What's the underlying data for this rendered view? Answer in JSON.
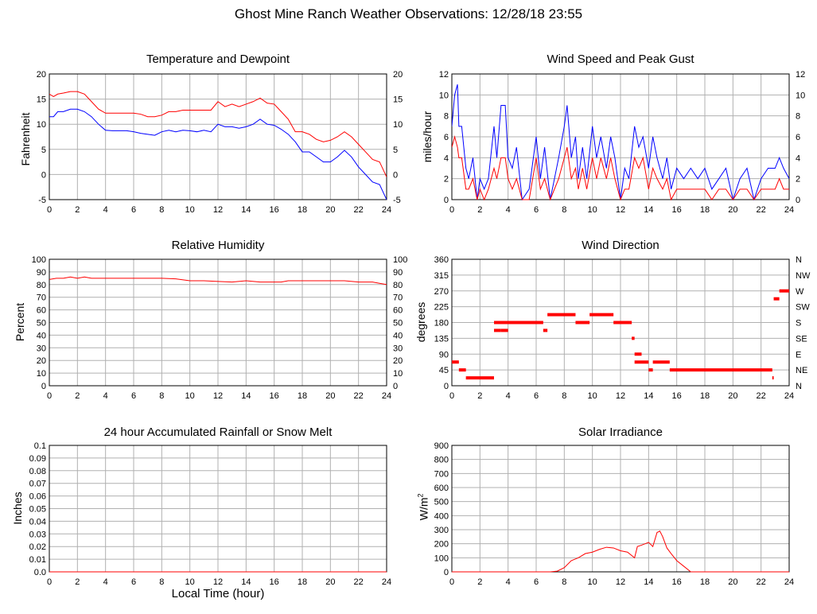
{
  "page": {
    "title": "Ghost Mine Ranch Weather Observations: 12/28/18 23:55"
  },
  "colors": {
    "red": "#ff0000",
    "blue": "#0000ff",
    "grid": "#b0b0b0"
  },
  "chart_data": [
    {
      "id": "temp",
      "type": "line",
      "title": "Temperature and Dewpoint",
      "ylabel": "Fahrenheit",
      "x_ticks": [
        0,
        2,
        4,
        6,
        8,
        10,
        12,
        14,
        16,
        18,
        20,
        22,
        24
      ],
      "ylim": [
        -5,
        20
      ],
      "y_ticks": [
        -5,
        0,
        5,
        10,
        15,
        20
      ],
      "right_axis_ticks": [
        "-5",
        "0",
        "5",
        "10",
        "15",
        "20"
      ],
      "series": [
        {
          "color": "red",
          "x": [
            0,
            0.3,
            0.6,
            1,
            1.5,
            2,
            2.5,
            3,
            3.5,
            4,
            4.5,
            5,
            5.5,
            6,
            6.5,
            7,
            7.5,
            8,
            8.5,
            9,
            9.5,
            10,
            10.5,
            11,
            11.5,
            12,
            12.5,
            13,
            13.5,
            14,
            14.5,
            15,
            15.5,
            16,
            16.5,
            17,
            17.5,
            18,
            18.5,
            19,
            19.5,
            20,
            20.5,
            21,
            21.5,
            22,
            22.5,
            23,
            23.5,
            24
          ],
          "y": [
            16,
            15.5,
            16,
            16.2,
            16.5,
            16.5,
            16,
            14.5,
            13,
            12.2,
            12.2,
            12.2,
            12.2,
            12.2,
            12,
            11.5,
            11.5,
            11.8,
            12.5,
            12.5,
            12.8,
            12.8,
            12.8,
            12.8,
            12.8,
            14.5,
            13.5,
            14,
            13.5,
            14,
            14.5,
            15.2,
            14.2,
            14,
            12.5,
            11,
            8.5,
            8.5,
            8,
            7,
            6.5,
            6.8,
            7.5,
            8.5,
            7.5,
            6,
            4.5,
            3,
            2.5,
            -0.5
          ]
        },
        {
          "color": "blue",
          "x": [
            0,
            0.3,
            0.6,
            1,
            1.5,
            2,
            2.5,
            3,
            3.5,
            4,
            4.5,
            5,
            5.5,
            6,
            6.5,
            7,
            7.5,
            8,
            8.5,
            9,
            9.5,
            10,
            10.5,
            11,
            11.5,
            12,
            12.5,
            13,
            13.5,
            14,
            14.5,
            15,
            15.5,
            16,
            16.5,
            17,
            17.5,
            18,
            18.5,
            19,
            19.5,
            20,
            20.5,
            21,
            21.5,
            22,
            22.5,
            23,
            23.5,
            24
          ],
          "y": [
            11.5,
            11.5,
            12.5,
            12.5,
            13,
            13,
            12.5,
            11.5,
            10,
            8.8,
            8.7,
            8.7,
            8.7,
            8.5,
            8.2,
            8,
            7.8,
            8.5,
            8.8,
            8.5,
            8.8,
            8.7,
            8.5,
            8.8,
            8.5,
            10,
            9.5,
            9.5,
            9.2,
            9.5,
            10,
            11,
            10,
            9.8,
            9,
            8,
            6.5,
            4.5,
            4.5,
            3.5,
            2.5,
            2.5,
            3.5,
            4.8,
            3.5,
            1.5,
            0,
            -1.5,
            -2,
            -5
          ]
        }
      ]
    },
    {
      "id": "wind",
      "type": "line",
      "title": "Wind Speed and Peak Gust",
      "ylabel": "miles/hour",
      "x_ticks": [
        0,
        2,
        4,
        6,
        8,
        10,
        12,
        14,
        16,
        18,
        20,
        22,
        24
      ],
      "ylim": [
        0,
        12
      ],
      "y_ticks": [
        0,
        2,
        4,
        6,
        8,
        10,
        12
      ],
      "right_axis_ticks": [
        "0",
        "2",
        "4",
        "6",
        "8",
        "10",
        "12"
      ],
      "series": [
        {
          "color": "blue",
          "x": [
            0,
            0.2,
            0.4,
            0.5,
            0.7,
            1,
            1.2,
            1.5,
            1.8,
            2,
            2.3,
            2.6,
            3,
            3.2,
            3.5,
            3.8,
            4,
            4.3,
            4.6,
            5,
            5.5,
            6,
            6.3,
            6.6,
            7,
            7.3,
            7.6,
            8,
            8.2,
            8.5,
            8.8,
            9,
            9.3,
            9.6,
            10,
            10.3,
            10.6,
            11,
            11.3,
            11.6,
            12,
            12.3,
            12.6,
            13,
            13.3,
            13.6,
            14,
            14.3,
            14.6,
            15,
            15.3,
            15.6,
            16,
            16.5,
            17,
            17.5,
            18,
            18.5,
            19,
            19.5,
            20,
            20.5,
            21,
            21.5,
            22,
            22.5,
            23,
            23.3,
            23.6,
            24
          ],
          "y": [
            7,
            10,
            11,
            7,
            7,
            3,
            2,
            4,
            0,
            2,
            1,
            2,
            7,
            4,
            9,
            9,
            4,
            3,
            5,
            0,
            1,
            6,
            2,
            5,
            0,
            2,
            4,
            7,
            9,
            4,
            6,
            2,
            5,
            2,
            7,
            4,
            6,
            3,
            6,
            4,
            0,
            3,
            2,
            7,
            5,
            6,
            3,
            6,
            4,
            2,
            4,
            1,
            3,
            2,
            3,
            2,
            3,
            1,
            2,
            3,
            0,
            2,
            3,
            0,
            2,
            3,
            3,
            4,
            3,
            2
          ]
        },
        {
          "color": "red",
          "x": [
            0,
            0.2,
            0.4,
            0.5,
            0.7,
            1,
            1.2,
            1.5,
            1.8,
            2,
            2.3,
            2.6,
            3,
            3.2,
            3.5,
            3.8,
            4,
            4.3,
            4.6,
            5,
            5.5,
            6,
            6.3,
            6.6,
            7,
            7.3,
            7.6,
            8,
            8.2,
            8.5,
            8.8,
            9,
            9.3,
            9.6,
            10,
            10.3,
            10.6,
            11,
            11.3,
            11.6,
            12,
            12.3,
            12.6,
            13,
            13.3,
            13.6,
            14,
            14.3,
            14.6,
            15,
            15.3,
            15.6,
            16,
            16.5,
            17,
            17.5,
            18,
            18.5,
            19,
            19.5,
            20,
            20.5,
            21,
            21.5,
            22,
            22.5,
            23,
            23.3,
            23.6,
            24
          ],
          "y": [
            5,
            6,
            5,
            4,
            4,
            1,
            1,
            2,
            0,
            1,
            0,
            1,
            3,
            2,
            4,
            4,
            2,
            1,
            2,
            0,
            0,
            4,
            1,
            2,
            0,
            1,
            2,
            4,
            5,
            2,
            3,
            1,
            3,
            1,
            4,
            2,
            4,
            2,
            4,
            2,
            0,
            1,
            1,
            4,
            3,
            4,
            1,
            3,
            2,
            1,
            2,
            0,
            1,
            1,
            1,
            1,
            1,
            0,
            1,
            1,
            0,
            1,
            1,
            0,
            1,
            1,
            1,
            2,
            1,
            1
          ]
        }
      ]
    },
    {
      "id": "rh",
      "type": "line",
      "title": "Relative Humidity",
      "ylabel": "Percent",
      "x_ticks": [
        0,
        2,
        4,
        6,
        8,
        10,
        12,
        14,
        16,
        18,
        20,
        22,
        24
      ],
      "ylim": [
        0,
        100
      ],
      "y_ticks": [
        0,
        10,
        20,
        30,
        40,
        50,
        60,
        70,
        80,
        90,
        100
      ],
      "right_axis_ticks": [
        "0",
        "10",
        "20",
        "30",
        "40",
        "50",
        "60",
        "70",
        "80",
        "90",
        "100"
      ],
      "series": [
        {
          "color": "red",
          "x": [
            0,
            0.5,
            1,
            1.5,
            2,
            2.5,
            3,
            4,
            5,
            6,
            7,
            8,
            9,
            10,
            11,
            12,
            13,
            14,
            15,
            16,
            16.5,
            17,
            18,
            19,
            20,
            21,
            22,
            23,
            23.5,
            24
          ],
          "y": [
            84,
            85,
            85,
            86,
            85,
            86,
            85,
            85,
            85,
            85,
            85,
            85,
            84.5,
            83,
            83,
            82.5,
            82,
            83,
            82,
            82,
            82,
            83,
            83,
            83,
            83,
            83,
            82,
            82,
            81,
            80
          ]
        }
      ]
    },
    {
      "id": "wdir",
      "type": "scatter",
      "title": "Wind Direction",
      "ylabel": "degrees",
      "x_ticks": [
        0,
        2,
        4,
        6,
        8,
        10,
        12,
        14,
        16,
        18,
        20,
        22,
        24
      ],
      "ylim": [
        0,
        360
      ],
      "y_ticks": [
        0,
        45,
        90,
        135,
        180,
        225,
        270,
        315,
        360
      ],
      "right_axis_ticks": [
        "N",
        "NE",
        "E",
        "SE",
        "S",
        "SW",
        "W",
        "NW",
        "N"
      ],
      "series": [
        {
          "color": "red",
          "segments": [
            [
              0,
              0.5,
              67.5
            ],
            [
              0.5,
              1,
              45
            ],
            [
              1,
              3,
              22.5
            ],
            [
              3,
              3.5,
              157.5
            ],
            [
              3.5,
              4,
              157.5
            ],
            [
              3,
              6.5,
              180
            ],
            [
              6.5,
              6.8,
              157.5
            ],
            [
              6.8,
              8.8,
              202.5
            ],
            [
              8.8,
              9.8,
              180
            ],
            [
              9.8,
              11.5,
              202.5
            ],
            [
              11.5,
              12.8,
              180
            ],
            [
              12.8,
              13,
              135
            ],
            [
              13,
              13.5,
              90
            ],
            [
              13,
              14,
              67.5
            ],
            [
              14,
              14.3,
              45
            ],
            [
              14.3,
              15.5,
              67.5
            ],
            [
              15.5,
              22.8,
              45
            ],
            [
              22.8,
              22.9,
              22.5
            ],
            [
              22.9,
              23.3,
              247.5
            ],
            [
              23.3,
              24,
              270
            ]
          ]
        }
      ]
    },
    {
      "id": "rain",
      "type": "line",
      "title": "24 hour Accumulated Rainfall or Snow Melt",
      "ylabel": "Inches",
      "xlabel": "Local Time (hour)",
      "x_ticks": [
        0,
        2,
        4,
        6,
        8,
        10,
        12,
        14,
        16,
        18,
        20,
        22,
        24
      ],
      "ylim": [
        0,
        0.1
      ],
      "y_ticks": [
        "0.0",
        "0.01",
        "0.02",
        "0.03",
        "0.04",
        "0.05",
        "0.06",
        "0.07",
        "0.08",
        "0.09",
        "0.1"
      ],
      "series": [
        {
          "color": "red",
          "x": [
            0,
            24
          ],
          "y": [
            0,
            0
          ]
        }
      ]
    },
    {
      "id": "solar",
      "type": "line",
      "title": "Solar Irradiance",
      "ylabel": "W/m",
      "ylabel_sup": "2",
      "x_ticks": [
        0,
        2,
        4,
        6,
        8,
        10,
        12,
        14,
        16,
        18,
        20,
        22,
        24
      ],
      "ylim": [
        0,
        900
      ],
      "y_ticks": [
        0,
        100,
        200,
        300,
        400,
        500,
        600,
        700,
        800,
        900
      ],
      "series": [
        {
          "color": "red",
          "x": [
            0,
            7,
            7.5,
            8,
            8.5,
            9,
            9.5,
            10,
            10.5,
            11,
            11.5,
            12,
            12.5,
            13,
            13.2,
            13.5,
            14,
            14.3,
            14.6,
            14.8,
            15,
            15.3,
            15.6,
            16,
            16.5,
            17,
            24
          ],
          "y": [
            0,
            0,
            5,
            30,
            80,
            100,
            130,
            140,
            160,
            175,
            170,
            150,
            140,
            100,
            180,
            190,
            210,
            180,
            280,
            290,
            250,
            170,
            130,
            80,
            40,
            0,
            0
          ]
        }
      ]
    }
  ]
}
